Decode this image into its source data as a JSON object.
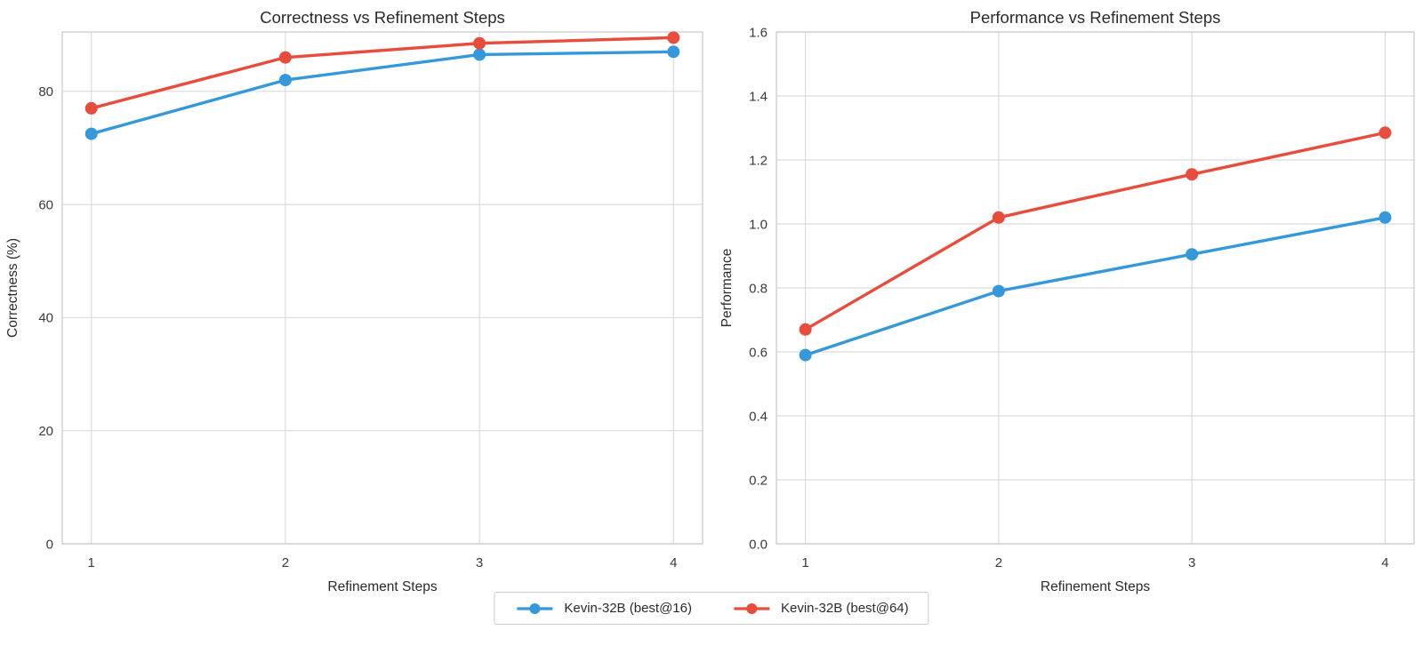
{
  "figure": {
    "background": "#ffffff"
  },
  "palette": {
    "blue": "#3498db",
    "red": "#e74c3c",
    "grid": "#dcdcdc",
    "spine": "#cfcfcf",
    "title_text": "#2b2b2b",
    "tick_text": "#3a3a3a"
  },
  "legend": {
    "items": [
      {
        "label": "Kevin-32B (best@16)",
        "color_key": "blue"
      },
      {
        "label": "Kevin-32B (best@64)",
        "color_key": "red"
      }
    ]
  },
  "chart_data": [
    {
      "type": "line",
      "title": "Correctness vs Refinement Steps",
      "xlabel": "Refinement Steps",
      "ylabel": "Correctness (%)",
      "x": [
        1,
        2,
        3,
        4
      ],
      "xlim": [
        0.85,
        4.15
      ],
      "ylim": [
        0,
        90.5
      ],
      "xticks": [
        1,
        2,
        3,
        4
      ],
      "xtick_labels": [
        "1",
        "2",
        "3",
        "4"
      ],
      "yticks": [
        0,
        20,
        40,
        60,
        80
      ],
      "ytick_labels": [
        "0",
        "20",
        "40",
        "60",
        "80"
      ],
      "grid": true,
      "legend_position": "figure-bottom-center",
      "series": [
        {
          "name": "Kevin-32B (best@16)",
          "color_key": "blue",
          "values": [
            72.5,
            82,
            86.5,
            87
          ]
        },
        {
          "name": "Kevin-32B (best@64)",
          "color_key": "red",
          "values": [
            77,
            86,
            88.5,
            89.5
          ]
        }
      ]
    },
    {
      "type": "line",
      "title": "Performance vs Refinement Steps",
      "xlabel": "Refinement Steps",
      "ylabel": "Performance",
      "x": [
        1,
        2,
        3,
        4
      ],
      "xlim": [
        0.85,
        4.15
      ],
      "ylim": [
        0,
        1.6
      ],
      "xticks": [
        1,
        2,
        3,
        4
      ],
      "xtick_labels": [
        "1",
        "2",
        "3",
        "4"
      ],
      "yticks": [
        0,
        0.2,
        0.4,
        0.6,
        0.8,
        1.0,
        1.2,
        1.4,
        1.6
      ],
      "ytick_labels": [
        "0.0",
        "0.2",
        "0.4",
        "0.6",
        "0.8",
        "1.0",
        "1.2",
        "1.4",
        "1.6"
      ],
      "grid": true,
      "legend_position": "figure-bottom-center",
      "series": [
        {
          "name": "Kevin-32B (best@16)",
          "color_key": "blue",
          "values": [
            0.59,
            0.79,
            0.905,
            1.02
          ]
        },
        {
          "name": "Kevin-32B (best@64)",
          "color_key": "red",
          "values": [
            0.67,
            1.02,
            1.155,
            1.285
          ]
        }
      ]
    }
  ]
}
